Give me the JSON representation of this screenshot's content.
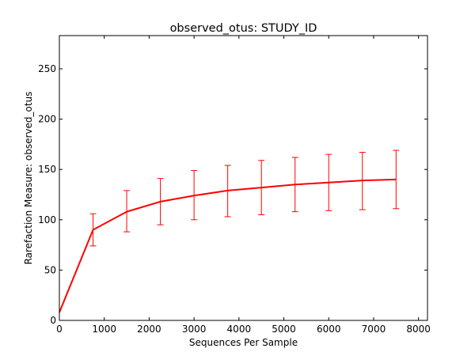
{
  "chart_data": {
    "type": "line",
    "title": "observed_otus: STUDY_ID",
    "xlabel": "Sequences Per Sample",
    "ylabel": "Rarefaction Measure: observed_otus",
    "xlim": [
      0,
      8200
    ],
    "ylim": [
      0,
      283
    ],
    "xticks": [
      0,
      1000,
      2000,
      3000,
      4000,
      5000,
      6000,
      7000,
      8000
    ],
    "yticks": [
      0,
      50,
      100,
      150,
      200,
      250
    ],
    "grid": false,
    "series": [
      {
        "name": "STUDY_ID",
        "color": "#ff0000",
        "x": [
          0,
          750,
          1500,
          2250,
          3000,
          3750,
          4500,
          5250,
          6000,
          6750,
          7500
        ],
        "y": [
          8,
          90,
          108,
          118,
          124,
          129,
          132,
          135,
          137,
          139,
          140
        ],
        "err_lower": [
          null,
          74,
          88,
          95,
          100,
          103,
          105,
          108,
          109,
          110,
          111
        ],
        "err_upper": [
          null,
          106,
          129,
          141,
          149,
          154,
          159,
          162,
          165,
          167,
          169
        ]
      }
    ]
  }
}
